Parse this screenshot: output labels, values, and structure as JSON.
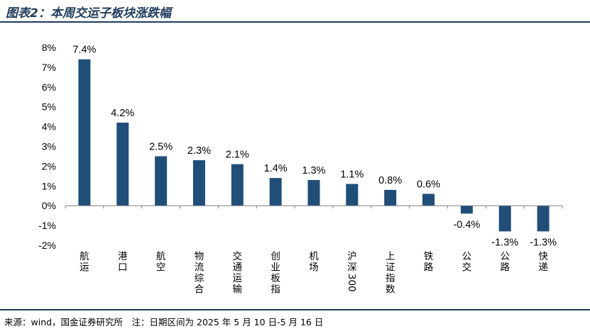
{
  "title": "图表2：本周交运子板块涨跌幅",
  "source": "来源：wind，国金证券研究所　注：日期区间为 2025 年 5 月 10 日-5 月 16 日",
  "chart_data": {
    "type": "bar",
    "title": "图表2：本周交运子板块涨跌幅",
    "categories": [
      "航运",
      "港口",
      "航空",
      "物流综合",
      "交通运输",
      "创业板指",
      "机场",
      "沪深300",
      "上证指数",
      "铁路",
      "公交",
      "公路",
      "快递"
    ],
    "values": [
      7.4,
      4.2,
      2.5,
      2.3,
      2.1,
      1.4,
      1.3,
      1.1,
      0.8,
      0.6,
      -0.4,
      -1.3,
      -1.3
    ],
    "data_labels": [
      "7.4%",
      "4.2%",
      "2.5%",
      "2.3%",
      "2.1%",
      "1.4%",
      "1.3%",
      "1.1%",
      "0.8%",
      "0.6%",
      "-0.4%",
      "-1.3%",
      "-1.3%"
    ],
    "ylim": [
      -2,
      8
    ],
    "yticks": [
      -2,
      -1,
      0,
      1,
      2,
      3,
      4,
      5,
      6,
      7,
      8
    ],
    "ytick_labels": [
      "-2%",
      "-1%",
      "0%",
      "1%",
      "2%",
      "3%",
      "4%",
      "5%",
      "6%",
      "7%",
      "8%"
    ],
    "xlabel": "",
    "ylabel": "",
    "grid": false,
    "legend": "none",
    "bar_color": "#1f4e79"
  }
}
